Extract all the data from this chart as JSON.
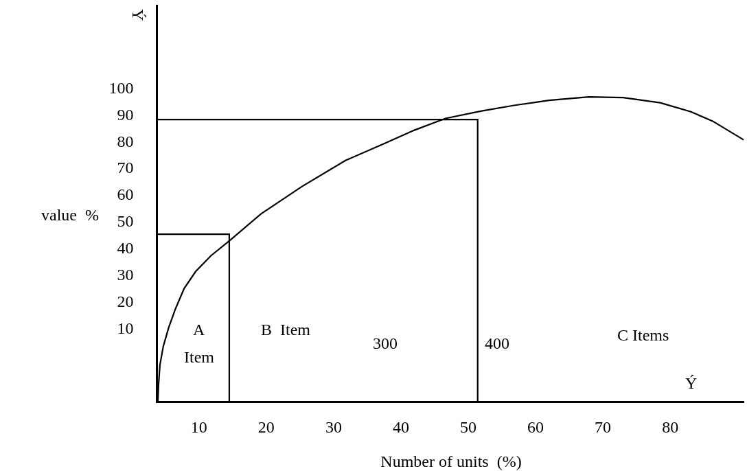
{
  "chart_data": {
    "type": "line",
    "xlabel": "Number of units  (%)",
    "ylabel": "value  %",
    "series": [
      {
        "color": "#000000",
        "x": [
          3.9,
          4.0,
          4.2,
          4.7,
          5.5,
          6.5,
          7.8,
          9.5,
          11.8,
          14.5,
          19.2,
          25.3,
          31.8,
          37.2,
          42.0,
          46.6,
          52.0,
          56.8,
          62.0,
          67.9,
          73.0,
          78.5,
          83.0,
          86.3,
          90.9
        ],
        "values": [
          -17.5,
          -11.3,
          -4,
          3,
          10,
          17,
          24.7,
          31,
          37,
          42.5,
          52.6,
          62.9,
          72.7,
          78.6,
          84,
          88.4,
          91.2,
          93.3,
          95.2,
          96.5,
          96.2,
          94.3,
          91,
          87.4,
          80.4
        ]
      },
      {
        "color": "#000000",
        "x": [
          3.9,
          14.5,
          14.5
        ],
        "values": [
          45,
          45,
          -17.5
        ]
      },
      {
        "color": "#000000",
        "x": [
          3.9,
          51.4,
          51.4
        ],
        "values": [
          88,
          88,
          -17.5
        ]
      }
    ],
    "xlim": [
      3.9,
      91
    ],
    "xticks": [
      10,
      20,
      30,
      40,
      50,
      60,
      70,
      80
    ],
    "ylim": [
      -17.5,
      131
    ],
    "yticks": [
      10,
      20,
      30,
      40,
      50,
      60,
      70,
      80,
      90,
      100
    ],
    "annotations": [
      "A",
      "Item",
      "B  Item",
      "300",
      "400",
      "C Items",
      "Ý",
      "Ý"
    ],
    "marker": "none",
    "line_style": "solid"
  }
}
